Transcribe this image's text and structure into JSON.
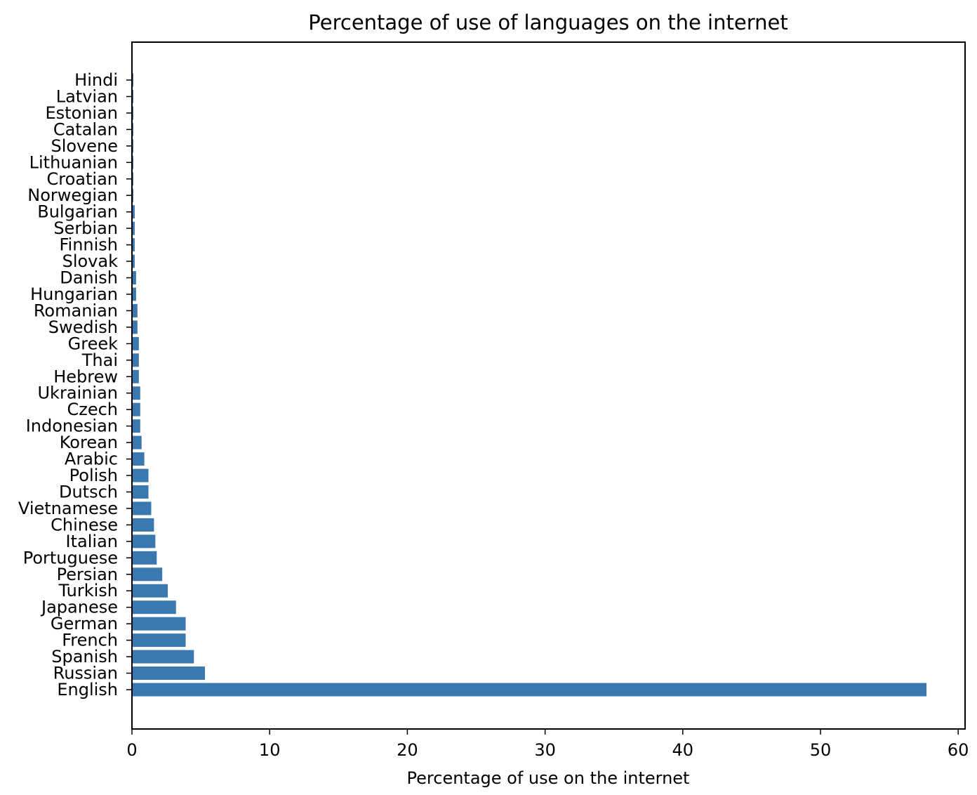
{
  "chart_data": {
    "type": "bar",
    "orientation": "horizontal",
    "title": "Percentage of use of languages on the internet",
    "xlabel": "Percentage of use on the internet",
    "ylabel": "",
    "xlim": [
      0,
      60.5
    ],
    "x_ticks": [
      "0",
      "10",
      "20",
      "30",
      "40",
      "50",
      "60"
    ],
    "grid": false,
    "bar_color": "#3a78b0",
    "categories": [
      "English",
      "Russian",
      "Spanish",
      "French",
      "German",
      "Japanese",
      "Turkish",
      "Persian",
      "Portuguese",
      "Italian",
      "Chinese",
      "Vietnamese",
      "Dutsch",
      "Polish",
      "Arabic",
      "Korean",
      "Indonesian",
      "Czech",
      "Ukrainian",
      "Hebrew",
      "Thai",
      "Greek",
      "Swedish",
      "Romanian",
      "Hungarian",
      "Danish",
      "Slovak",
      "Finnish",
      "Serbian",
      "Bulgarian",
      "Norwegian",
      "Croatian",
      "Lithuanian",
      "Slovene",
      "Catalan",
      "Estonian",
      "Latvian",
      "Hindi"
    ],
    "values": [
      57.7,
      5.3,
      4.5,
      3.9,
      3.9,
      3.2,
      2.6,
      2.2,
      1.8,
      1.7,
      1.6,
      1.4,
      1.2,
      1.2,
      0.9,
      0.7,
      0.6,
      0.6,
      0.6,
      0.5,
      0.5,
      0.5,
      0.4,
      0.4,
      0.3,
      0.3,
      0.2,
      0.2,
      0.2,
      0.2,
      0.1,
      0.1,
      0.1,
      0.1,
      0.1,
      0.1,
      0.1,
      0.1
    ]
  }
}
